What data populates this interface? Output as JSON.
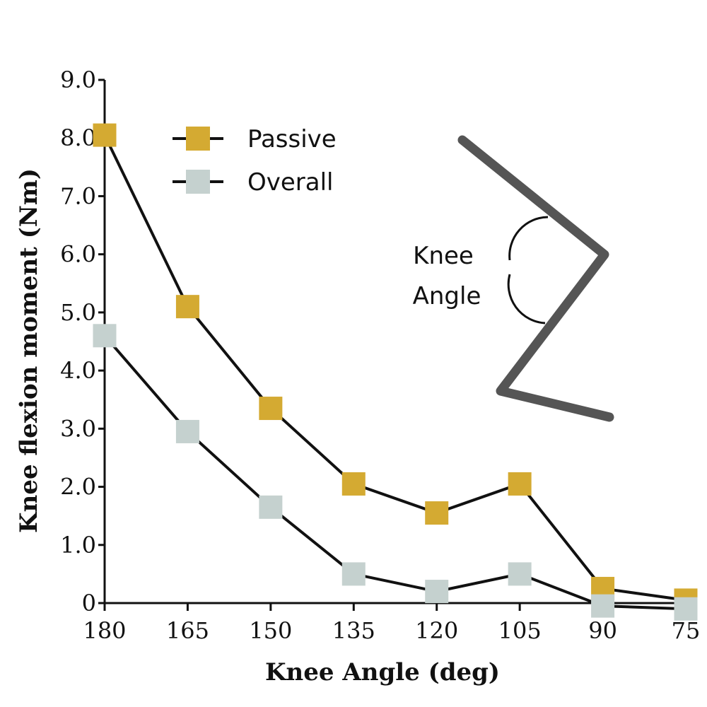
{
  "chart_data": {
    "type": "line",
    "xlabel": "Knee Angle (deg)",
    "ylabel": "Knee flexion moment (Nm)",
    "x": [
      180,
      165,
      150,
      135,
      120,
      105,
      90,
      75
    ],
    "x_tick_labels": [
      "180",
      "165",
      "150",
      "135",
      "120",
      "105",
      "90",
      "75"
    ],
    "x_reversed": true,
    "xlim": [
      180,
      75
    ],
    "ylim": [
      0,
      9
    ],
    "y_ticks": [
      0,
      1,
      2,
      3,
      4,
      5,
      6,
      7,
      8,
      9
    ],
    "y_tick_labels": [
      "0",
      "1.0",
      "2.0",
      "3.0",
      "4.0",
      "5.0",
      "6.0",
      "7.0",
      "8.0",
      "9.0"
    ],
    "grid": false,
    "legend_position": "top-left",
    "series": [
      {
        "name": "Passive",
        "color": "#D4AA32",
        "marker": "square",
        "values": [
          8.05,
          5.1,
          3.35,
          2.05,
          1.55,
          2.05,
          0.25,
          0.05
        ]
      },
      {
        "name": "Overall",
        "color": "#C5D1CF",
        "marker": "square",
        "values": [
          4.6,
          2.95,
          1.65,
          0.5,
          0.2,
          0.5,
          -0.05,
          -0.1
        ]
      }
    ],
    "annotations": [
      {
        "type": "diagram",
        "lines": [
          "Knee",
          "Angle"
        ]
      }
    ]
  }
}
